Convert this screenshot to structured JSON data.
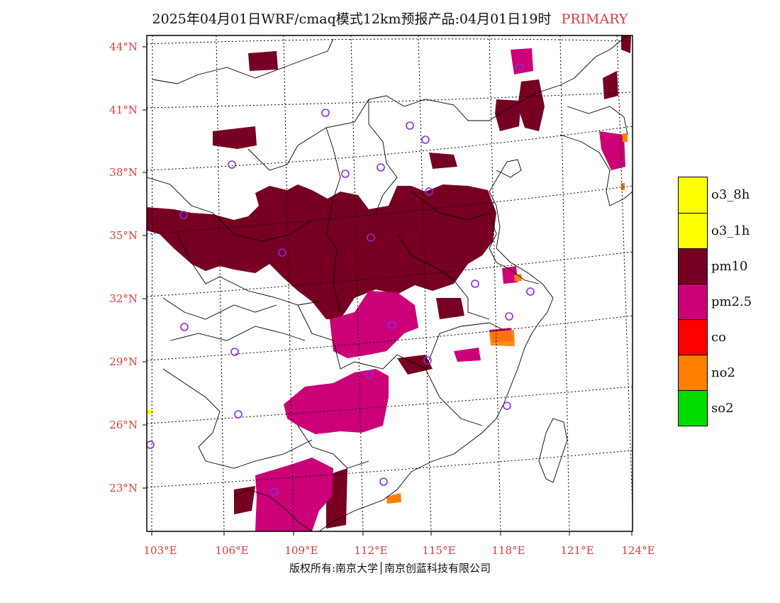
{
  "header": {
    "title": "2025年04月01日WRF/cmaq模式12km预报产品:04月01日19时",
    "badge": "PRIMARY",
    "badge_color": "#e03a3a"
  },
  "map": {
    "lat_ticks": [
      "44°N",
      "41°N",
      "38°N",
      "35°N",
      "32°N",
      "29°N",
      "26°N",
      "23°N"
    ],
    "lon_ticks": [
      "103°E",
      "106°E",
      "109°E",
      "112°E",
      "115°E",
      "118°E",
      "121°E",
      "124°E"
    ],
    "stations_marker_color": "#8a2be2",
    "coastline_color": "#000000"
  },
  "legend": {
    "items": [
      {
        "label": "o3_8h",
        "color": "#ffff00"
      },
      {
        "label": "o3_1h",
        "color": "#ffff00"
      },
      {
        "label": "pm10",
        "color": "#770022"
      },
      {
        "label": "pm2.5",
        "color": "#cc0077"
      },
      {
        "label": "co",
        "color": "#ff0000"
      },
      {
        "label": "no2",
        "color": "#ff7f00"
      },
      {
        "label": "so2",
        "color": "#00dd00"
      }
    ]
  },
  "footer": {
    "copyright": "版权所有:南京大学│南京创蓝科技有限公司"
  }
}
